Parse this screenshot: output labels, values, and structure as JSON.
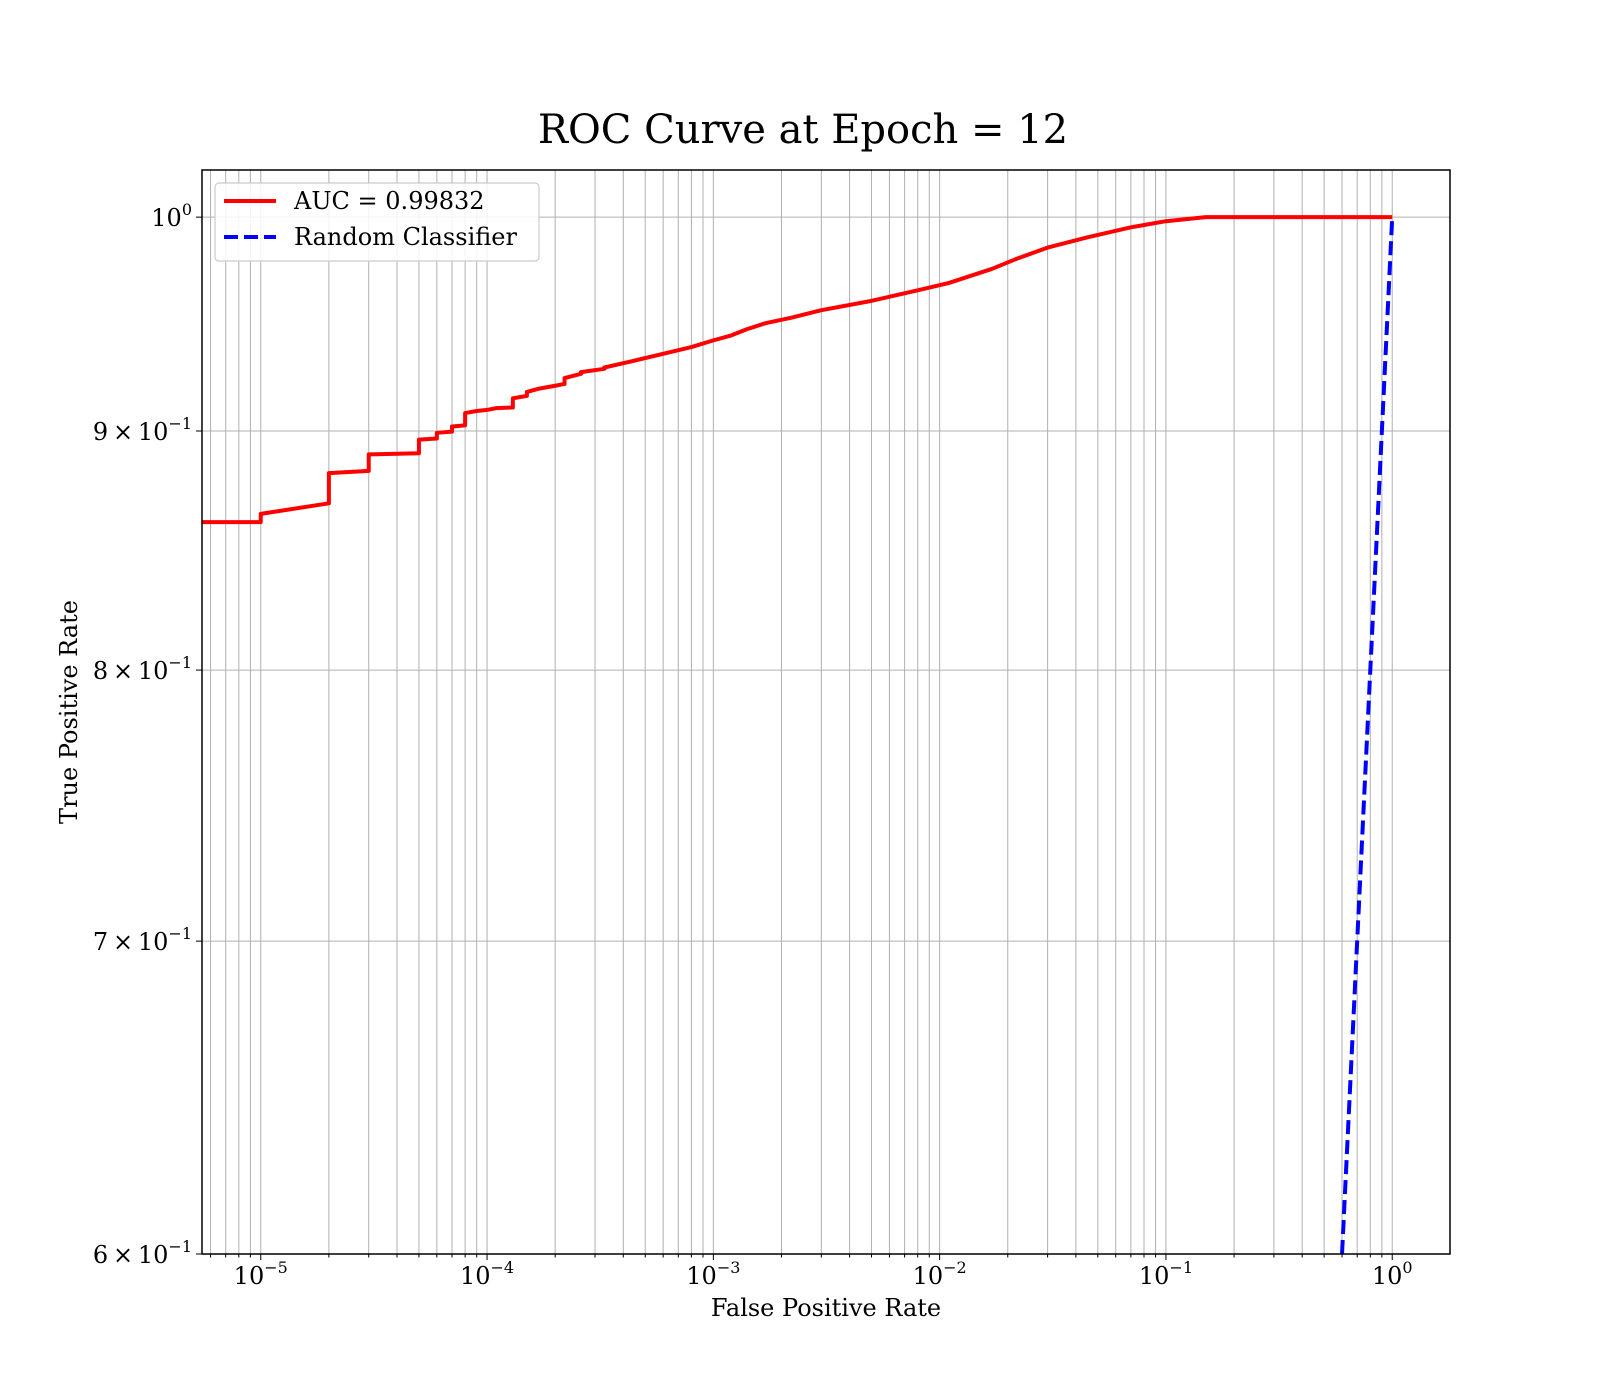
{
  "chart_data": {
    "type": "line",
    "title": "ROC Curve at Epoch = 12",
    "xlabel": "False Positive Rate",
    "ylabel": "True Positive Rate",
    "xscale": "log",
    "yscale": "log",
    "xlim": [
      5.5e-06,
      1.8
    ],
    "ylim": [
      0.6,
      1.0235
    ],
    "grid": "on (major and minor, both axes)",
    "legend_placement": "top-left",
    "x_tick_labels": [
      {
        "base": "10",
        "exp": "−5",
        "value": 1e-05
      },
      {
        "base": "10",
        "exp": "−4",
        "value": 0.0001
      },
      {
        "base": "10",
        "exp": "−3",
        "value": 0.001
      },
      {
        "base": "10",
        "exp": "−2",
        "value": 0.01
      },
      {
        "base": "10",
        "exp": "−1",
        "value": 0.1
      },
      {
        "base": "10",
        "exp": "0",
        "value": 1
      }
    ],
    "y_tick_labels": [
      {
        "mant": "",
        "base": "10",
        "exp": "0",
        "value": 1.0
      },
      {
        "mant": "9",
        "base": "10",
        "exp": "−1",
        "value": 0.9
      },
      {
        "mant": "8",
        "base": "10",
        "exp": "−1",
        "value": 0.8
      },
      {
        "mant": "7",
        "base": "10",
        "exp": "−1",
        "value": 0.7
      },
      {
        "mant": "6",
        "base": "10",
        "exp": "−1",
        "value": 0.6
      }
    ],
    "series": [
      {
        "name": "AUC = 0.99832",
        "color": "#ff0000",
        "style": "solid",
        "x": [
          5.5e-06,
          1e-05,
          1e-05,
          2e-05,
          2e-05,
          3e-05,
          3e-05,
          5e-05,
          5e-05,
          6e-05,
          6e-05,
          7e-05,
          7e-05,
          8e-05,
          8e-05,
          9e-05,
          0.0001,
          0.00011,
          0.00013,
          0.00013,
          0.00015,
          0.00015,
          0.00017,
          0.0002,
          0.00022,
          0.00022,
          0.00026,
          0.00026,
          0.00033,
          0.00033,
          0.00045,
          0.0006,
          0.0008,
          0.001,
          0.0012,
          0.0014,
          0.0017,
          0.0022,
          0.003,
          0.005,
          0.008,
          0.011,
          0.017,
          0.022,
          0.03,
          0.045,
          0.07,
          0.1,
          0.15,
          0.2,
          0.4,
          0.7,
          1.0
        ],
        "y": [
          0.8605,
          0.8605,
          0.864,
          0.8685,
          0.8815,
          0.8825,
          0.8897,
          0.8902,
          0.8962,
          0.8967,
          0.8992,
          0.8997,
          0.902,
          0.9025,
          0.908,
          0.9089,
          0.9094,
          0.9102,
          0.9105,
          0.9146,
          0.9157,
          0.9175,
          0.919,
          0.9203,
          0.9211,
          0.9238,
          0.9257,
          0.9265,
          0.928,
          0.9286,
          0.9318,
          0.9349,
          0.938,
          0.9411,
          0.9434,
          0.9462,
          0.9491,
          0.9516,
          0.9552,
          0.9596,
          0.9646,
          0.9681,
          0.9748,
          0.9798,
          0.9851,
          0.9901,
          0.995,
          0.998,
          1.0,
          1.0,
          1.0,
          1.0,
          1.0
        ]
      },
      {
        "name": "Random Classifier",
        "color": "#0000ff",
        "style": "dashed",
        "x": [
          0.6,
          1.0
        ],
        "y": [
          0.6,
          1.0
        ]
      }
    ]
  }
}
